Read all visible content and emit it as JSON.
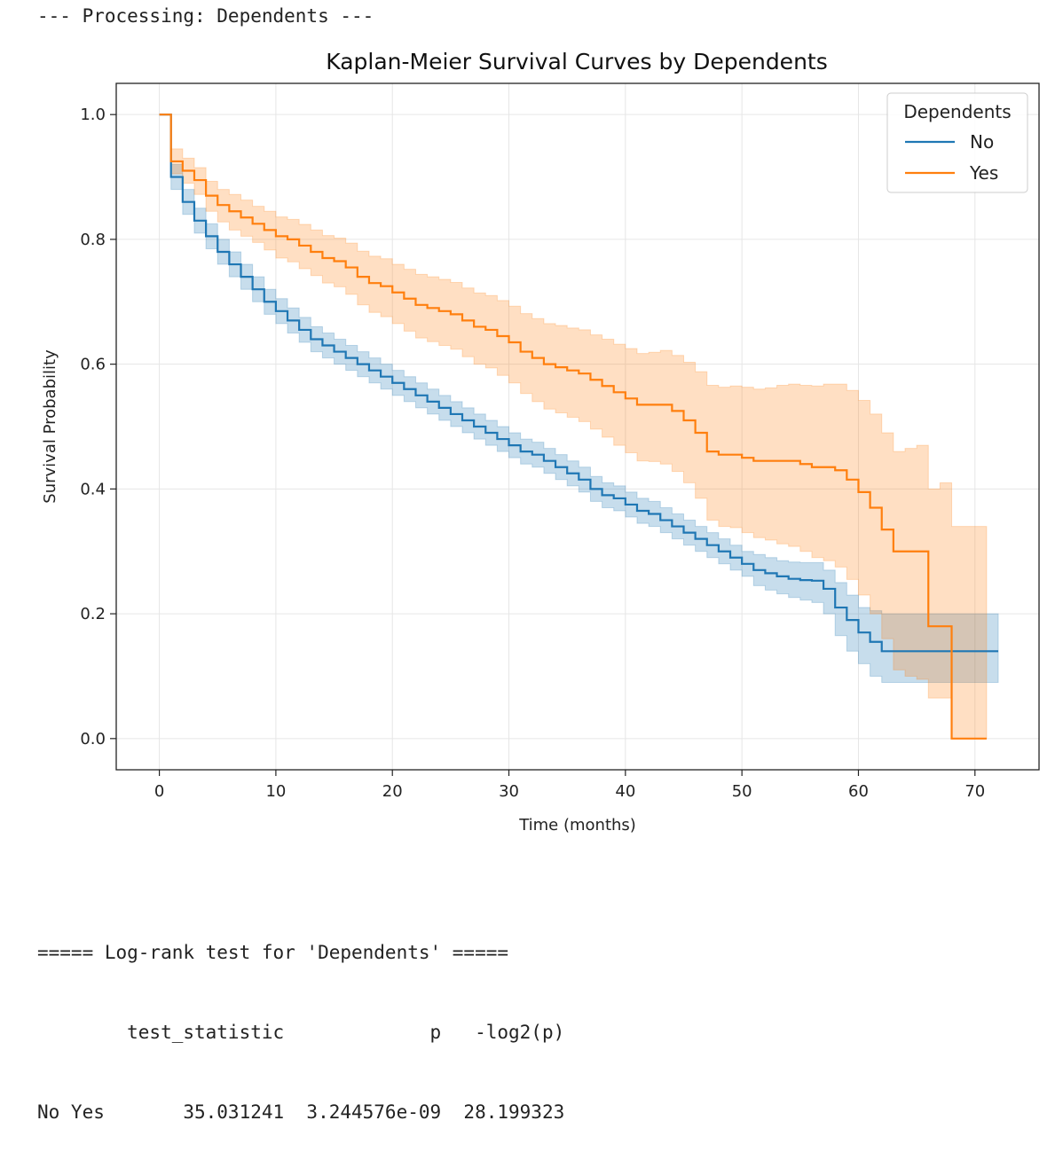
{
  "output": {
    "header": "--- Processing: Dependents ---",
    "logrank_title": "===== Log-rank test for 'Dependents' =====",
    "table_header": "        test_statistic             p   -log2(p)",
    "table_row": "No Yes       35.031241  3.244576e-09  28.199323"
  },
  "chart_data": {
    "type": "line",
    "title": "Kaplan-Meier Survival Curves by Dependents",
    "xlabel": "Time (months)",
    "ylabel": "Survival Probability",
    "xlim": [
      -3.7,
      75.5
    ],
    "ylim": [
      -0.05,
      1.05
    ],
    "xticks": [
      0,
      10,
      20,
      30,
      40,
      50,
      60,
      70
    ],
    "yticks": [
      0.0,
      0.2,
      0.4,
      0.6,
      0.8,
      1.0
    ],
    "ytick_labels": [
      "0.0",
      "0.2",
      "0.4",
      "0.6",
      "0.8",
      "1.0"
    ],
    "grid": true,
    "step": true,
    "legend": {
      "title": "Dependents",
      "placement": "top-right"
    },
    "series": [
      {
        "name": "No",
        "color": "#1f77b4",
        "fill_color": "#1f77b4",
        "x": [
          0,
          1,
          2,
          3,
          4,
          5,
          6,
          7,
          8,
          9,
          10,
          11,
          12,
          13,
          14,
          15,
          16,
          17,
          18,
          19,
          20,
          21,
          22,
          23,
          24,
          25,
          26,
          27,
          28,
          29,
          30,
          31,
          32,
          33,
          34,
          35,
          36,
          37,
          38,
          39,
          40,
          41,
          42,
          43,
          44,
          45,
          46,
          47,
          48,
          49,
          50,
          51,
          52,
          53,
          54,
          55,
          56,
          57,
          58,
          59,
          60,
          61,
          62,
          63,
          64,
          65,
          66,
          67,
          68,
          69,
          70,
          71,
          72
        ],
        "y": [
          1.0,
          0.9,
          0.86,
          0.83,
          0.805,
          0.78,
          0.76,
          0.74,
          0.72,
          0.7,
          0.685,
          0.67,
          0.655,
          0.64,
          0.63,
          0.62,
          0.61,
          0.6,
          0.59,
          0.58,
          0.57,
          0.56,
          0.55,
          0.54,
          0.53,
          0.52,
          0.51,
          0.5,
          0.49,
          0.48,
          0.47,
          0.46,
          0.455,
          0.445,
          0.435,
          0.425,
          0.415,
          0.4,
          0.39,
          0.385,
          0.375,
          0.365,
          0.36,
          0.35,
          0.34,
          0.33,
          0.32,
          0.31,
          0.3,
          0.29,
          0.28,
          0.27,
          0.265,
          0.26,
          0.256,
          0.254,
          0.253,
          0.24,
          0.21,
          0.19,
          0.17,
          0.155,
          0.14,
          0.14,
          0.14,
          0.14,
          0.14,
          0.14,
          0.14,
          0.14,
          0.14,
          0.14,
          0.14
        ],
        "ci_lower": [
          1.0,
          0.88,
          0.84,
          0.81,
          0.785,
          0.76,
          0.74,
          0.72,
          0.7,
          0.68,
          0.665,
          0.65,
          0.635,
          0.62,
          0.61,
          0.6,
          0.59,
          0.58,
          0.57,
          0.56,
          0.55,
          0.54,
          0.53,
          0.52,
          0.51,
          0.5,
          0.49,
          0.48,
          0.47,
          0.46,
          0.45,
          0.44,
          0.435,
          0.425,
          0.415,
          0.405,
          0.395,
          0.38,
          0.37,
          0.365,
          0.355,
          0.345,
          0.34,
          0.33,
          0.32,
          0.31,
          0.3,
          0.29,
          0.28,
          0.27,
          0.26,
          0.245,
          0.238,
          0.232,
          0.226,
          0.222,
          0.218,
          0.2,
          0.165,
          0.14,
          0.12,
          0.1,
          0.09,
          0.09,
          0.09,
          0.09,
          0.09,
          0.09,
          0.09,
          0.09,
          0.09,
          0.09,
          0.09
        ],
        "ci_upper": [
          1.0,
          0.92,
          0.88,
          0.85,
          0.825,
          0.8,
          0.78,
          0.76,
          0.74,
          0.72,
          0.705,
          0.69,
          0.675,
          0.66,
          0.65,
          0.64,
          0.63,
          0.62,
          0.61,
          0.6,
          0.59,
          0.58,
          0.57,
          0.56,
          0.55,
          0.54,
          0.53,
          0.52,
          0.51,
          0.5,
          0.49,
          0.48,
          0.475,
          0.465,
          0.455,
          0.445,
          0.435,
          0.42,
          0.41,
          0.405,
          0.395,
          0.385,
          0.38,
          0.37,
          0.36,
          0.35,
          0.34,
          0.33,
          0.32,
          0.31,
          0.3,
          0.295,
          0.29,
          0.285,
          0.283,
          0.282,
          0.282,
          0.27,
          0.25,
          0.23,
          0.21,
          0.205,
          0.2,
          0.2,
          0.2,
          0.2,
          0.2,
          0.2,
          0.2,
          0.2,
          0.2,
          0.2,
          0.2
        ]
      },
      {
        "name": "Yes",
        "color": "#ff7f0e",
        "fill_color": "#ff7f0e",
        "x": [
          0,
          1,
          2,
          3,
          4,
          5,
          6,
          7,
          8,
          9,
          10,
          11,
          12,
          13,
          14,
          15,
          16,
          17,
          18,
          19,
          20,
          21,
          22,
          23,
          24,
          25,
          26,
          27,
          28,
          29,
          30,
          31,
          32,
          33,
          34,
          35,
          36,
          37,
          38,
          39,
          40,
          41,
          42,
          43,
          44,
          45,
          46,
          47,
          48,
          49,
          50,
          51,
          52,
          53,
          54,
          55,
          56,
          57,
          58,
          59,
          60,
          61,
          62,
          63,
          64,
          65,
          66,
          67,
          68,
          69,
          70,
          71
        ],
        "y": [
          1.0,
          0.925,
          0.91,
          0.895,
          0.87,
          0.855,
          0.845,
          0.835,
          0.825,
          0.815,
          0.805,
          0.8,
          0.79,
          0.78,
          0.77,
          0.765,
          0.755,
          0.74,
          0.73,
          0.725,
          0.715,
          0.705,
          0.695,
          0.69,
          0.685,
          0.68,
          0.67,
          0.66,
          0.655,
          0.645,
          0.635,
          0.62,
          0.61,
          0.6,
          0.595,
          0.59,
          0.585,
          0.575,
          0.565,
          0.555,
          0.545,
          0.535,
          0.535,
          0.535,
          0.525,
          0.51,
          0.49,
          0.46,
          0.455,
          0.455,
          0.45,
          0.445,
          0.445,
          0.445,
          0.445,
          0.44,
          0.435,
          0.435,
          0.43,
          0.415,
          0.395,
          0.37,
          0.335,
          0.3,
          0.3,
          0.3,
          0.18,
          0.18,
          0.0,
          0.0,
          0.0,
          0.0
        ],
        "ci_lower": [
          1.0,
          0.905,
          0.89,
          0.872,
          0.845,
          0.828,
          0.815,
          0.805,
          0.795,
          0.783,
          0.77,
          0.764,
          0.753,
          0.742,
          0.73,
          0.724,
          0.712,
          0.695,
          0.683,
          0.676,
          0.665,
          0.653,
          0.642,
          0.636,
          0.63,
          0.624,
          0.612,
          0.6,
          0.594,
          0.582,
          0.57,
          0.553,
          0.54,
          0.528,
          0.522,
          0.515,
          0.508,
          0.496,
          0.483,
          0.47,
          0.458,
          0.445,
          0.444,
          0.44,
          0.428,
          0.41,
          0.385,
          0.35,
          0.34,
          0.338,
          0.33,
          0.322,
          0.318,
          0.312,
          0.308,
          0.3,
          0.29,
          0.285,
          0.275,
          0.255,
          0.23,
          0.2,
          0.16,
          0.11,
          0.1,
          0.095,
          0.065,
          0.065,
          0.0,
          0.0,
          0.0,
          0.0
        ],
        "ci_upper": [
          1.0,
          0.945,
          0.93,
          0.915,
          0.893,
          0.88,
          0.872,
          0.863,
          0.853,
          0.845,
          0.836,
          0.832,
          0.824,
          0.815,
          0.806,
          0.802,
          0.794,
          0.781,
          0.773,
          0.769,
          0.76,
          0.752,
          0.744,
          0.74,
          0.736,
          0.731,
          0.722,
          0.714,
          0.71,
          0.702,
          0.693,
          0.681,
          0.673,
          0.665,
          0.662,
          0.658,
          0.655,
          0.647,
          0.64,
          0.632,
          0.625,
          0.617,
          0.619,
          0.622,
          0.614,
          0.603,
          0.588,
          0.566,
          0.563,
          0.565,
          0.563,
          0.56,
          0.562,
          0.566,
          0.568,
          0.566,
          0.565,
          0.568,
          0.568,
          0.558,
          0.542,
          0.52,
          0.49,
          0.46,
          0.465,
          0.47,
          0.4,
          0.41,
          0.34,
          0.34,
          0.34,
          0.34
        ]
      }
    ]
  }
}
